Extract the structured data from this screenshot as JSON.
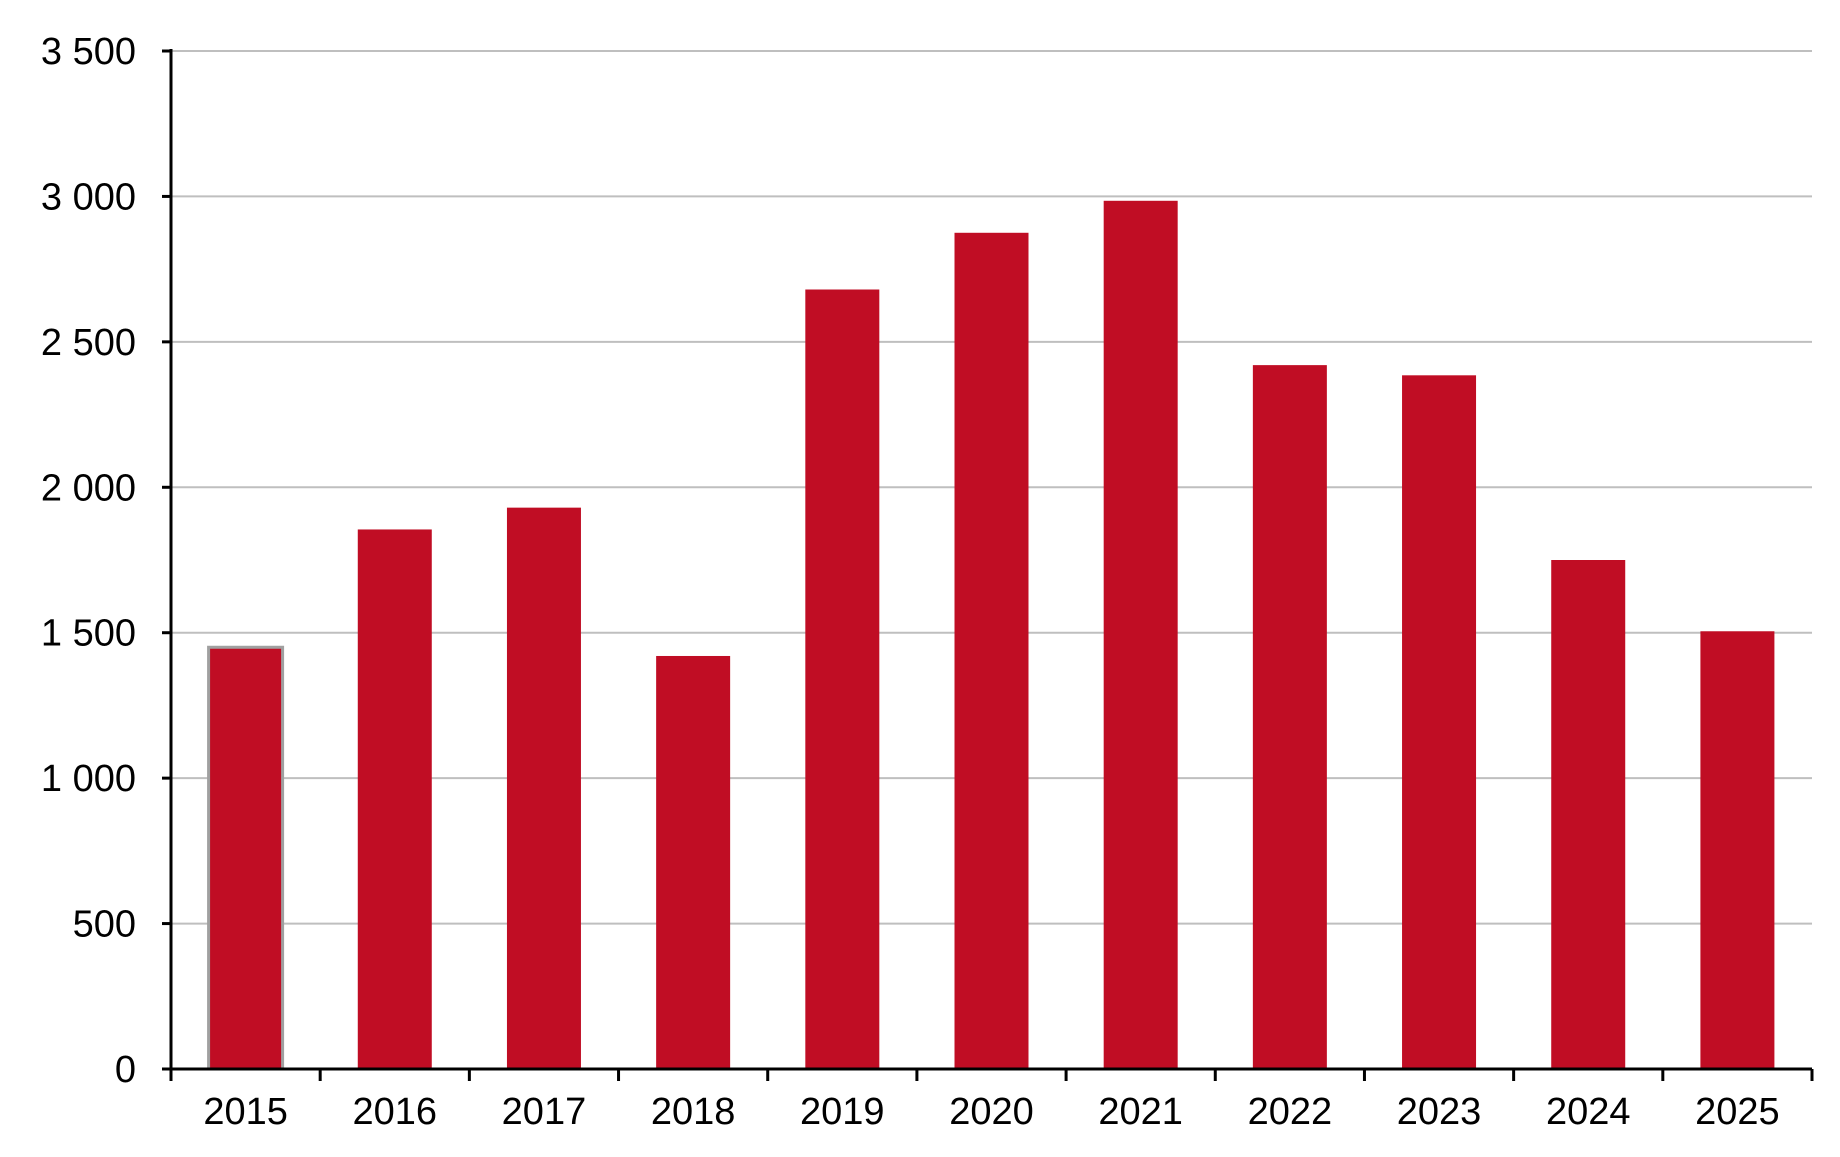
{
  "chart_data": {
    "type": "bar",
    "title": "",
    "xlabel": "",
    "ylabel": "",
    "categories": [
      "2015",
      "2016",
      "2017",
      "2018",
      "2019",
      "2020",
      "2021",
      "2022",
      "2023",
      "2024",
      "2025"
    ],
    "values": [
      1450,
      1855,
      1930,
      1420,
      2680,
      2875,
      2985,
      2420,
      2385,
      1750,
      1505
    ],
    "ylim": [
      0,
      3500
    ],
    "yticks": [
      0,
      500,
      1000,
      1500,
      2000,
      2500,
      3000,
      3500
    ],
    "ytick_labels": [
      "0",
      "500",
      "1 000",
      "1 500",
      "2 000",
      "2 500",
      "3 000",
      "3 500"
    ],
    "grid": true,
    "legend": "none",
    "colors": {
      "bar": "#C00D24",
      "first_bar_outline": "#A0A0A0",
      "grid": "#BFBFBF",
      "axis": "#000000"
    }
  }
}
